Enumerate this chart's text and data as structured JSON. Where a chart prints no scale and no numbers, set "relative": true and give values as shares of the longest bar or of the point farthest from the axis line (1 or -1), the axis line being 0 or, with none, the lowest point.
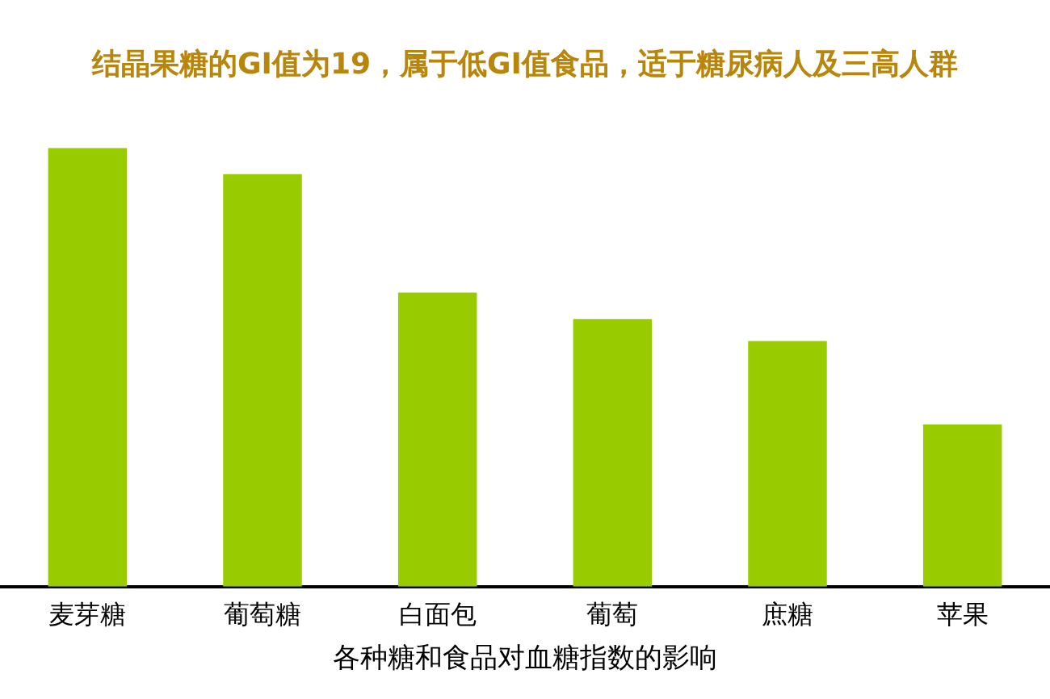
{
  "chart_data": {
    "type": "bar",
    "title": "结晶果糖的GI值为19，属于低GI值食品，适于糖尿病人及三高人群",
    "xlabel": "各种糖和食品对血糖指数的影响",
    "categories": [
      "麦芽糖",
      "葡萄糖",
      "白面包",
      "葡萄",
      "庶糖",
      "苹果"
    ],
    "values": [
      1,
      0.94,
      0.67,
      0.61,
      0.56,
      0.37
    ],
    "color": "#99cc00",
    "relative": true,
    "grid": false,
    "legend": false
  }
}
